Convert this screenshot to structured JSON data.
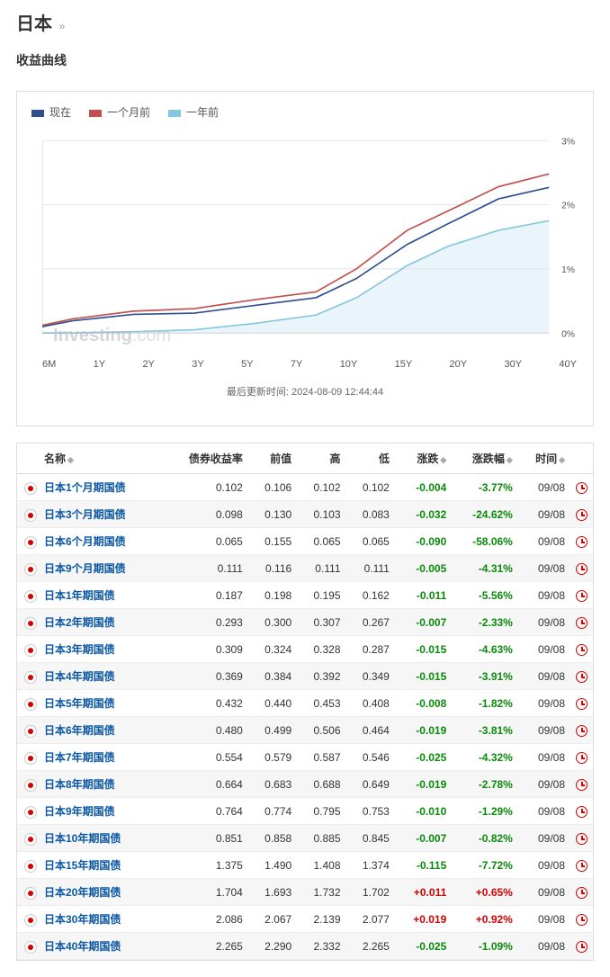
{
  "header": {
    "title": "日本",
    "subtitle": "收益曲线"
  },
  "chart": {
    "type": "line",
    "legend": [
      {
        "label": "现在",
        "color": "#2f4f8f"
      },
      {
        "label": "一个月前",
        "color": "#c0504d"
      },
      {
        "label": "一年前",
        "color": "#87c6e0"
      }
    ],
    "x_labels": [
      "6M",
      "1Y",
      "2Y",
      "3Y",
      "5Y",
      "7Y",
      "10Y",
      "15Y",
      "20Y",
      "30Y",
      "40Y"
    ],
    "x_positions": [
      0,
      0.06,
      0.18,
      0.3,
      0.42,
      0.54,
      0.62,
      0.72,
      0.8,
      0.9,
      1.0
    ],
    "ylim": [
      0,
      3
    ],
    "ytick_step": 1,
    "ytick_suffix": "%",
    "grid_color": "#e5e5e5",
    "background_color": "#ffffff",
    "area_series_index": 2,
    "area_fill": "#d9edf7",
    "area_opacity": 0.55,
    "series": [
      {
        "name": "现在",
        "color": "#2f4f8f",
        "width": 1.6,
        "values": [
          0.1,
          0.19,
          0.29,
          0.31,
          0.43,
          0.55,
          0.85,
          1.38,
          1.7,
          2.09,
          2.27
        ]
      },
      {
        "name": "一个月前",
        "color": "#c0504d",
        "width": 1.6,
        "values": [
          0.12,
          0.22,
          0.34,
          0.38,
          0.52,
          0.64,
          1.0,
          1.6,
          1.9,
          2.28,
          2.48
        ]
      },
      {
        "name": "一年前",
        "color": "#87c6e0",
        "width": 1.6,
        "values": [
          0.0,
          0.0,
          0.02,
          0.05,
          0.15,
          0.28,
          0.55,
          1.05,
          1.35,
          1.6,
          1.75
        ]
      }
    ],
    "watermark": "Investing",
    "watermark_suffix": ".com",
    "update_label": "最后更新时间: 2024-08-09 12:44:44"
  },
  "table": {
    "columns": [
      "名称",
      "债券收益率",
      "前值",
      "高",
      "低",
      "涨跌",
      "涨跌幅",
      "时间"
    ],
    "rows": [
      {
        "name": "日本1个月期国债",
        "yield": "0.102",
        "prev": "0.106",
        "high": "0.102",
        "low": "0.102",
        "chg": "-0.004",
        "chgpct": "-3.77%",
        "time": "09/08"
      },
      {
        "name": "日本3个月期国债",
        "yield": "0.098",
        "prev": "0.130",
        "high": "0.103",
        "low": "0.083",
        "chg": "-0.032",
        "chgpct": "-24.62%",
        "time": "09/08"
      },
      {
        "name": "日本6个月期国债",
        "yield": "0.065",
        "prev": "0.155",
        "high": "0.065",
        "low": "0.065",
        "chg": "-0.090",
        "chgpct": "-58.06%",
        "time": "09/08"
      },
      {
        "name": "日本9个月期国债",
        "yield": "0.111",
        "prev": "0.116",
        "high": "0.111",
        "low": "0.111",
        "chg": "-0.005",
        "chgpct": "-4.31%",
        "time": "09/08"
      },
      {
        "name": "日本1年期国债",
        "yield": "0.187",
        "prev": "0.198",
        "high": "0.195",
        "low": "0.162",
        "chg": "-0.011",
        "chgpct": "-5.56%",
        "time": "09/08"
      },
      {
        "name": "日本2年期国债",
        "yield": "0.293",
        "prev": "0.300",
        "high": "0.307",
        "low": "0.267",
        "chg": "-0.007",
        "chgpct": "-2.33%",
        "time": "09/08"
      },
      {
        "name": "日本3年期国债",
        "yield": "0.309",
        "prev": "0.324",
        "high": "0.328",
        "low": "0.287",
        "chg": "-0.015",
        "chgpct": "-4.63%",
        "time": "09/08"
      },
      {
        "name": "日本4年期国债",
        "yield": "0.369",
        "prev": "0.384",
        "high": "0.392",
        "low": "0.349",
        "chg": "-0.015",
        "chgpct": "-3.91%",
        "time": "09/08"
      },
      {
        "name": "日本5年期国债",
        "yield": "0.432",
        "prev": "0.440",
        "high": "0.453",
        "low": "0.408",
        "chg": "-0.008",
        "chgpct": "-1.82%",
        "time": "09/08"
      },
      {
        "name": "日本6年期国债",
        "yield": "0.480",
        "prev": "0.499",
        "high": "0.506",
        "low": "0.464",
        "chg": "-0.019",
        "chgpct": "-3.81%",
        "time": "09/08"
      },
      {
        "name": "日本7年期国债",
        "yield": "0.554",
        "prev": "0.579",
        "high": "0.587",
        "low": "0.546",
        "chg": "-0.025",
        "chgpct": "-4.32%",
        "time": "09/08"
      },
      {
        "name": "日本8年期国债",
        "yield": "0.664",
        "prev": "0.683",
        "high": "0.688",
        "low": "0.649",
        "chg": "-0.019",
        "chgpct": "-2.78%",
        "time": "09/08"
      },
      {
        "name": "日本9年期国债",
        "yield": "0.764",
        "prev": "0.774",
        "high": "0.795",
        "low": "0.753",
        "chg": "-0.010",
        "chgpct": "-1.29%",
        "time": "09/08"
      },
      {
        "name": "日本10年期国债",
        "yield": "0.851",
        "prev": "0.858",
        "high": "0.885",
        "low": "0.845",
        "chg": "-0.007",
        "chgpct": "-0.82%",
        "time": "09/08"
      },
      {
        "name": "日本15年期国债",
        "yield": "1.375",
        "prev": "1.490",
        "high": "1.408",
        "low": "1.374",
        "chg": "-0.115",
        "chgpct": "-7.72%",
        "time": "09/08"
      },
      {
        "name": "日本20年期国债",
        "yield": "1.704",
        "prev": "1.693",
        "high": "1.732",
        "low": "1.702",
        "chg": "+0.011",
        "chgpct": "+0.65%",
        "time": "09/08"
      },
      {
        "name": "日本30年期国债",
        "yield": "2.086",
        "prev": "2.067",
        "high": "2.139",
        "low": "2.077",
        "chg": "+0.019",
        "chgpct": "+0.92%",
        "time": "09/08"
      },
      {
        "name": "日本40年期国债",
        "yield": "2.265",
        "prev": "2.290",
        "high": "2.332",
        "low": "2.265",
        "chg": "-0.025",
        "chgpct": "-1.09%",
        "time": "09/08"
      }
    ]
  }
}
